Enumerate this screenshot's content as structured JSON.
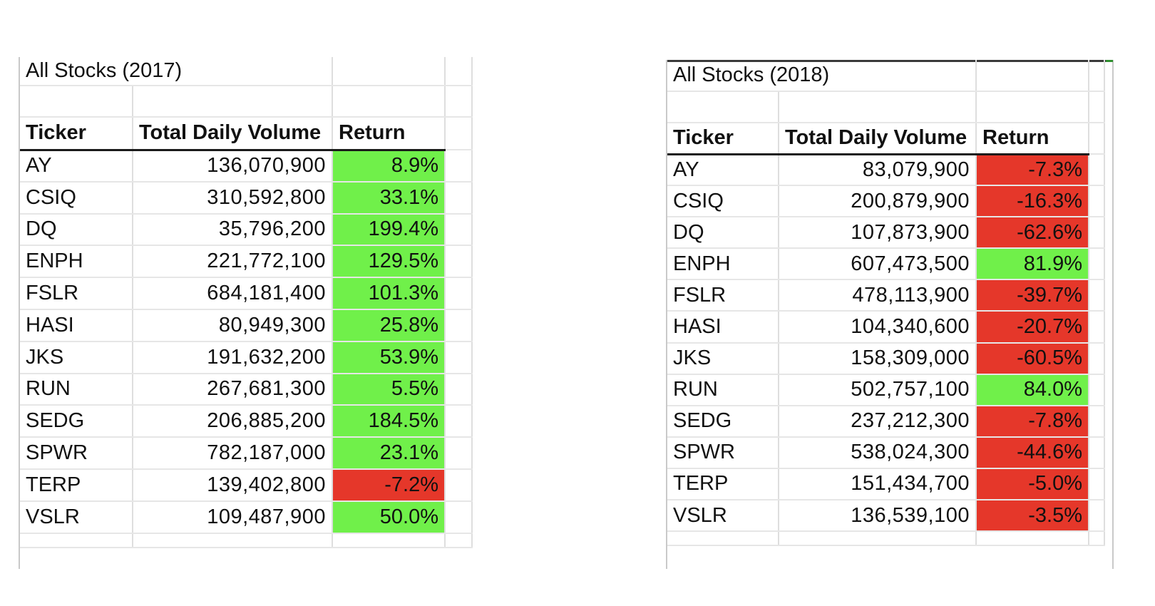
{
  "tables": [
    {
      "title": "All Stocks (2017)",
      "headers": {
        "ticker": "Ticker",
        "volume": "Total Daily Volume",
        "return": "Return"
      },
      "rows": [
        {
          "ticker": "AY",
          "volume": "136,070,900",
          "return": "8.9%",
          "sign": "pos"
        },
        {
          "ticker": "CSIQ",
          "volume": "310,592,800",
          "return": "33.1%",
          "sign": "pos"
        },
        {
          "ticker": "DQ",
          "volume": "35,796,200",
          "return": "199.4%",
          "sign": "pos"
        },
        {
          "ticker": "ENPH",
          "volume": "221,772,100",
          "return": "129.5%",
          "sign": "pos"
        },
        {
          "ticker": "FSLR",
          "volume": "684,181,400",
          "return": "101.3%",
          "sign": "pos"
        },
        {
          "ticker": "HASI",
          "volume": "80,949,300",
          "return": "25.8%",
          "sign": "pos"
        },
        {
          "ticker": "JKS",
          "volume": "191,632,200",
          "return": "53.9%",
          "sign": "pos"
        },
        {
          "ticker": "RUN",
          "volume": "267,681,300",
          "return": "5.5%",
          "sign": "pos"
        },
        {
          "ticker": "SEDG",
          "volume": "206,885,200",
          "return": "184.5%",
          "sign": "pos"
        },
        {
          "ticker": "SPWR",
          "volume": "782,187,000",
          "return": "23.1%",
          "sign": "pos"
        },
        {
          "ticker": "TERP",
          "volume": "139,402,800",
          "return": "-7.2%",
          "sign": "neg"
        },
        {
          "ticker": "VSLR",
          "volume": "109,487,900",
          "return": "50.0%",
          "sign": "pos"
        }
      ]
    },
    {
      "title": "All Stocks (2018)",
      "headers": {
        "ticker": "Ticker",
        "volume": "Total Daily Volume",
        "return": "Return"
      },
      "rows": [
        {
          "ticker": "AY",
          "volume": "83,079,900",
          "return": "-7.3%",
          "sign": "neg"
        },
        {
          "ticker": "CSIQ",
          "volume": "200,879,900",
          "return": "-16.3%",
          "sign": "neg"
        },
        {
          "ticker": "DQ",
          "volume": "107,873,900",
          "return": "-62.6%",
          "sign": "neg"
        },
        {
          "ticker": "ENPH",
          "volume": "607,473,500",
          "return": "81.9%",
          "sign": "pos"
        },
        {
          "ticker": "FSLR",
          "volume": "478,113,900",
          "return": "-39.7%",
          "sign": "neg"
        },
        {
          "ticker": "HASI",
          "volume": "104,340,600",
          "return": "-20.7%",
          "sign": "neg"
        },
        {
          "ticker": "JKS",
          "volume": "158,309,000",
          "return": "-60.5%",
          "sign": "neg"
        },
        {
          "ticker": "RUN",
          "volume": "502,757,100",
          "return": "84.0%",
          "sign": "pos"
        },
        {
          "ticker": "SEDG",
          "volume": "237,212,300",
          "return": "-7.8%",
          "sign": "neg"
        },
        {
          "ticker": "SPWR",
          "volume": "538,024,300",
          "return": "-44.6%",
          "sign": "neg"
        },
        {
          "ticker": "TERP",
          "volume": "151,434,700",
          "return": "-5.0%",
          "sign": "neg"
        },
        {
          "ticker": "VSLR",
          "volume": "136,539,100",
          "return": "-3.5%",
          "sign": "neg"
        }
      ]
    }
  ],
  "colors": {
    "positive": "#70f04a",
    "negative": "#e5372a",
    "grid": "#dedede"
  }
}
